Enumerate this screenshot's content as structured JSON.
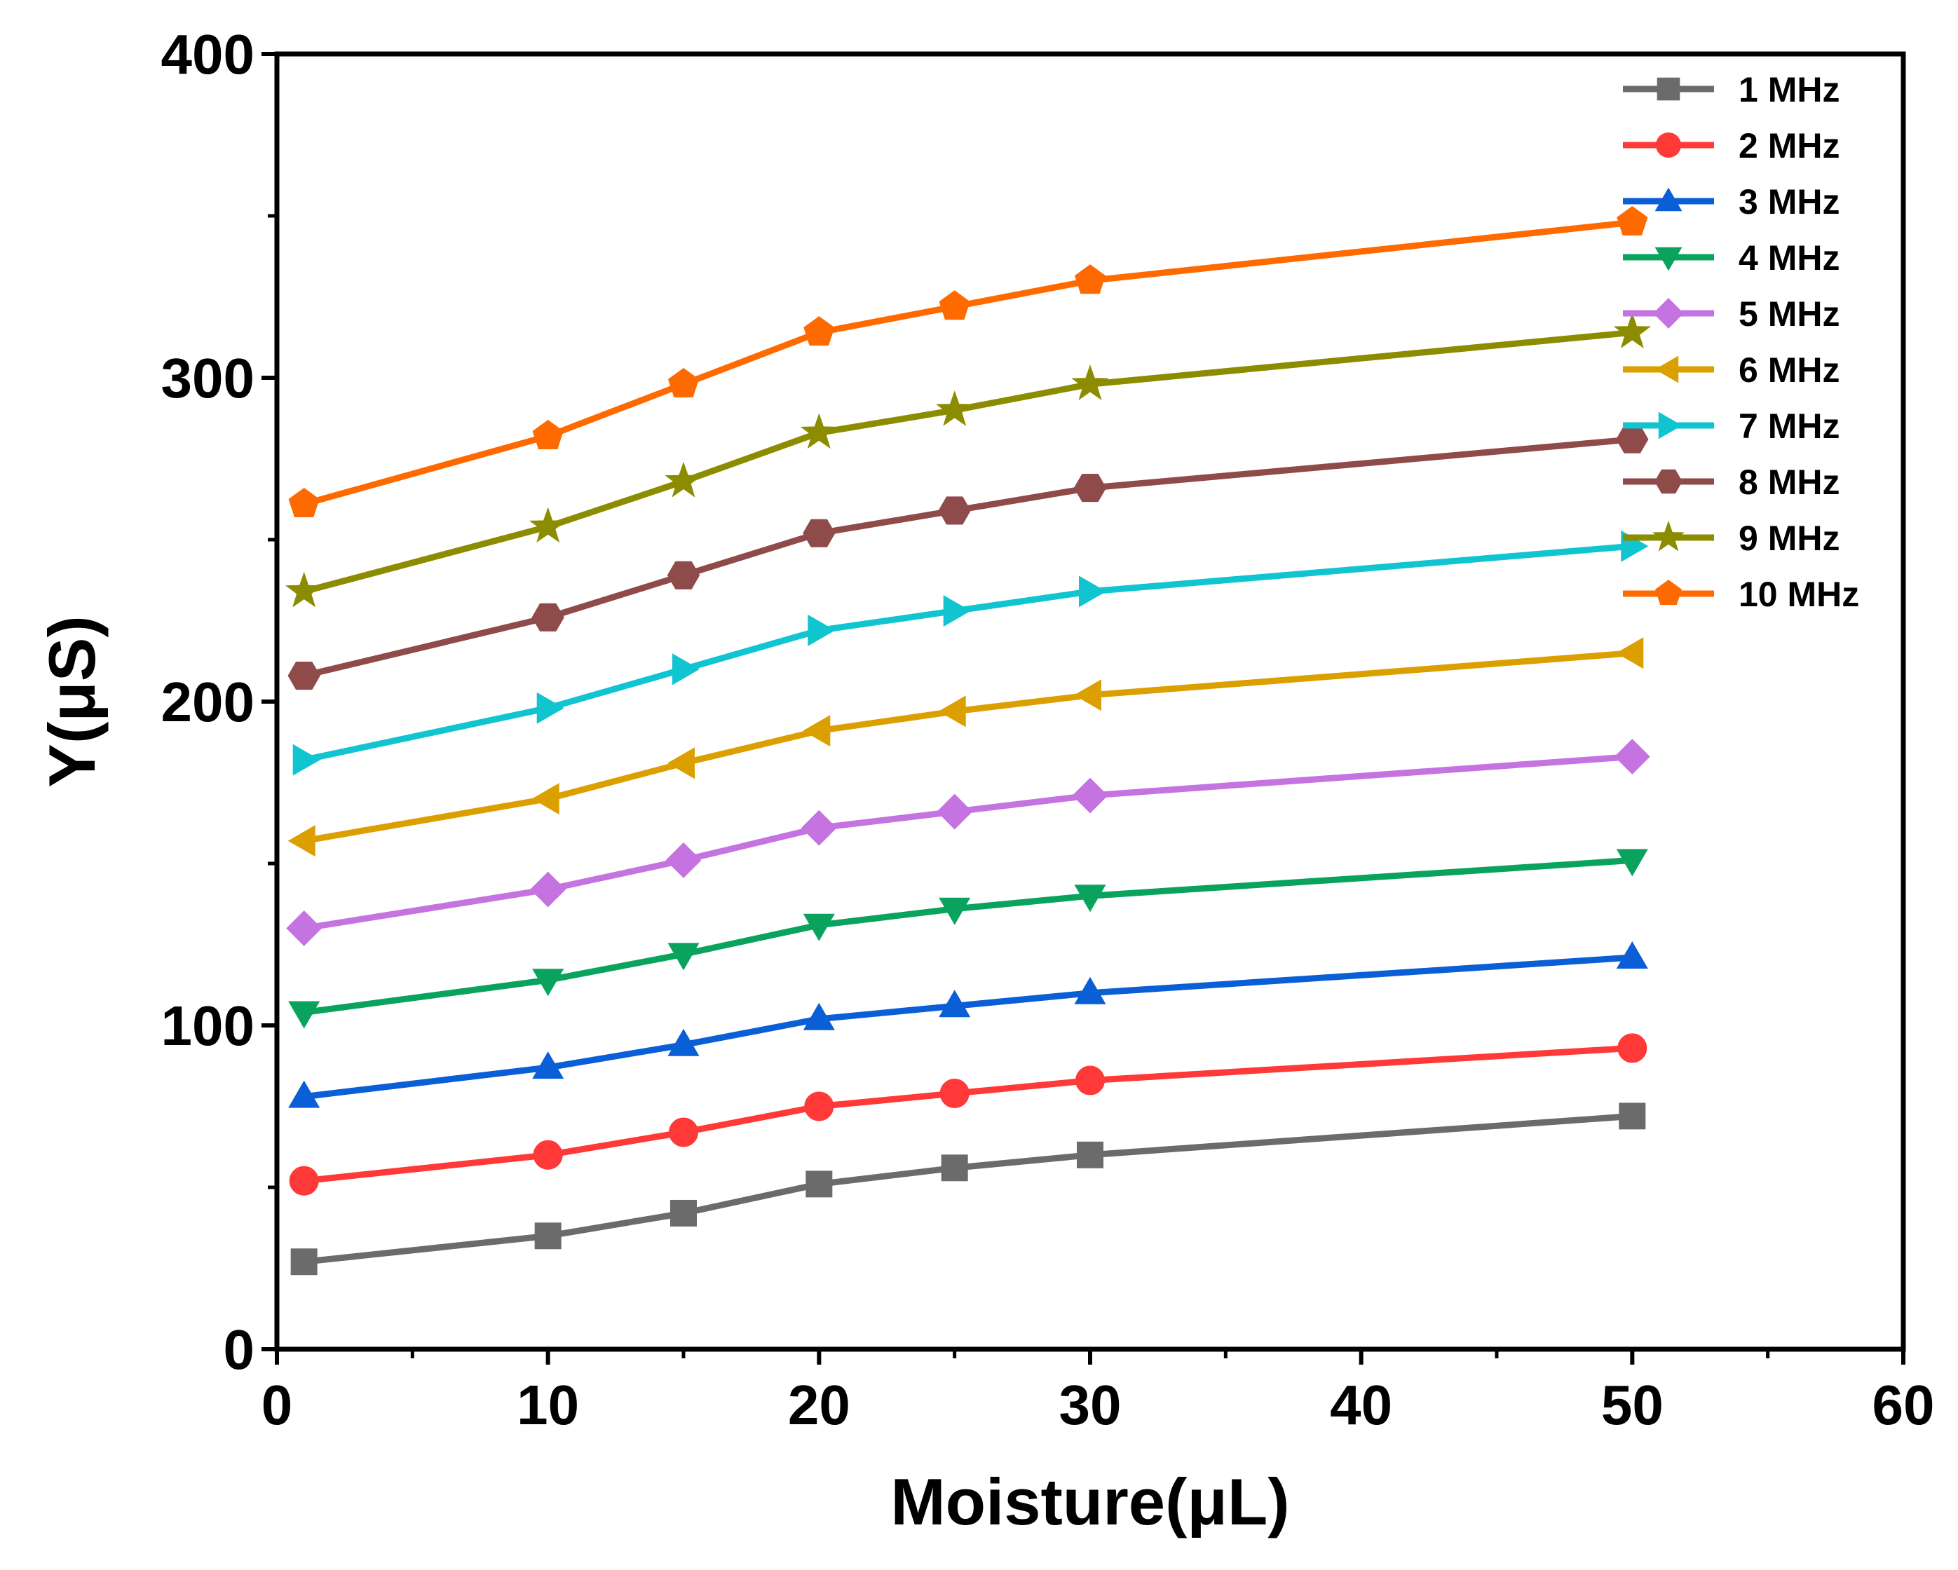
{
  "chart_data": {
    "type": "line",
    "title": "",
    "xlabel": "Moisture(μL)",
    "ylabel": "Y(μS)",
    "xlim": [
      0,
      60
    ],
    "ylim": [
      0,
      400
    ],
    "xticks": [
      0,
      10,
      20,
      30,
      40,
      50,
      60
    ],
    "yticks": [
      0,
      100,
      200,
      300,
      400
    ],
    "grid": false,
    "legend_position": "top-right",
    "x": [
      1,
      10,
      15,
      20,
      25,
      30,
      50
    ],
    "series": [
      {
        "name": "1 MHz",
        "color": "#6b6b6b",
        "marker": "square",
        "values": [
          27,
          35,
          42,
          51,
          56,
          60,
          72
        ]
      },
      {
        "name": "2 MHz",
        "color": "#ff3838",
        "marker": "circle",
        "values": [
          52,
          60,
          67,
          75,
          79,
          83,
          93
        ]
      },
      {
        "name": "3 MHz",
        "color": "#0a5fd6",
        "marker": "triangle-up",
        "values": [
          78,
          87,
          94,
          102,
          106,
          110,
          121
        ]
      },
      {
        "name": "4 MHz",
        "color": "#0aa35e",
        "marker": "triangle-down",
        "values": [
          104,
          114,
          122,
          131,
          136,
          140,
          151
        ]
      },
      {
        "name": "5 MHz",
        "color": "#c473e0",
        "marker": "diamond",
        "values": [
          130,
          142,
          151,
          161,
          166,
          171,
          183
        ]
      },
      {
        "name": "6 MHz",
        "color": "#dc9f00",
        "marker": "triangle-left",
        "values": [
          157,
          170,
          181,
          191,
          197,
          202,
          215
        ]
      },
      {
        "name": "7 MHz",
        "color": "#10c4d0",
        "marker": "triangle-right",
        "values": [
          182,
          198,
          210,
          222,
          228,
          234,
          248
        ]
      },
      {
        "name": "8 MHz",
        "color": "#8f4a4a",
        "marker": "hexagon",
        "values": [
          208,
          226,
          239,
          252,
          259,
          266,
          281
        ]
      },
      {
        "name": "9 MHz",
        "color": "#8c8c00",
        "marker": "star",
        "values": [
          234,
          254,
          268,
          283,
          290,
          298,
          314
        ]
      },
      {
        "name": "10 MHz",
        "color": "#ff6a00",
        "marker": "pentagon",
        "values": [
          261,
          282,
          298,
          314,
          322,
          330,
          348
        ]
      }
    ]
  }
}
